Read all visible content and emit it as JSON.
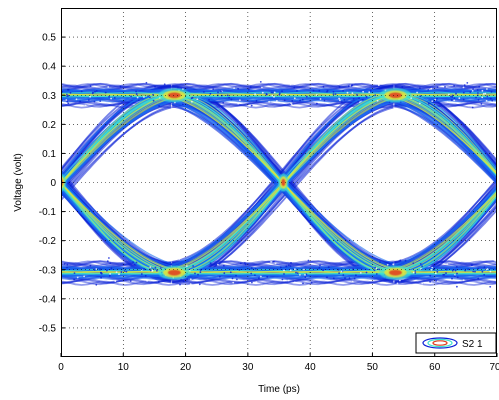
{
  "chart_data": {
    "type": "density_contour",
    "subtype": "eye_diagram",
    "xlabel": "Time (ps)",
    "ylabel": "Voltage (volt)",
    "xlim": [
      0,
      70
    ],
    "ylim": [
      -0.6,
      0.6
    ],
    "x_ticks": [
      0,
      10,
      20,
      30,
      40,
      50,
      60,
      70
    ],
    "x_tick_labels": [
      "0",
      "10",
      "20",
      "30",
      "40",
      "50",
      "60",
      "70"
    ],
    "y_ticks": [
      0.5,
      0.4,
      0.3,
      0.2,
      0.1,
      0,
      -0.1,
      -0.2,
      -0.3,
      -0.4,
      -0.5
    ],
    "y_tick_labels": [
      "0.5",
      "0.4",
      "0.3",
      "0.2",
      "0.1",
      "0",
      "-0.1",
      "-0.2",
      "-0.3",
      "-0.4",
      "-0.5"
    ],
    "grid": true,
    "grid_style": "dotted",
    "legend": {
      "entries": [
        "S2 1"
      ],
      "placement": "bottom-right"
    },
    "signal": {
      "high_level": 0.3,
      "low_level": -0.31,
      "level_spread": 0.05,
      "crossing_times": [
        0,
        35.7
      ],
      "unit_interval": 35.7,
      "peak_density_points": [
        {
          "x": 18.2,
          "y": 0.3
        },
        {
          "x": 53.7,
          "y": 0.3
        },
        {
          "x": 18.2,
          "y": -0.31
        },
        {
          "x": 53.7,
          "y": -0.31
        },
        {
          "x": 35.7,
          "y": 0.0
        },
        {
          "x": 0,
          "y": 0.0
        }
      ]
    },
    "colors": {
      "density_low": "#0a1fd6",
      "density_mid": "#1a6cf2",
      "density_high": "#3fe3d0",
      "density_peak": "#f2e22a",
      "density_core": "#e03a1c",
      "grid": "#000000",
      "background": "#ffffff"
    }
  }
}
